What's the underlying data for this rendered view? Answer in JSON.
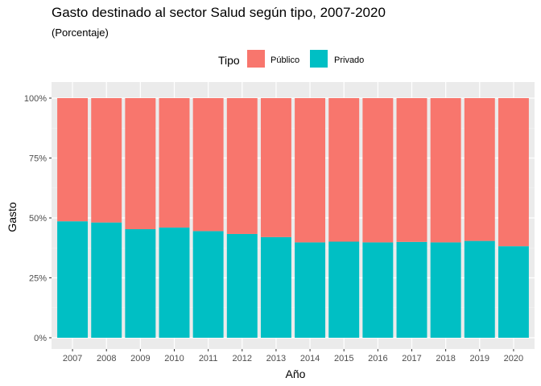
{
  "chart_data": {
    "type": "bar",
    "stacked": true,
    "title": "Gasto destinado al sector Salud según tipo, 2007-2020",
    "subtitle": "(Porcentaje)",
    "xlabel": "Año",
    "ylabel": "Gasto",
    "legend_title": "Tipo",
    "legend_position": "top",
    "grid": true,
    "ylim": [
      0,
      100
    ],
    "y_ticks": [
      0,
      25,
      50,
      75,
      100
    ],
    "y_tick_labels": [
      "0%",
      "25%",
      "50%",
      "75%",
      "100%"
    ],
    "categories": [
      "2007",
      "2008",
      "2009",
      "2010",
      "2011",
      "2012",
      "2013",
      "2014",
      "2015",
      "2016",
      "2017",
      "2018",
      "2019",
      "2020"
    ],
    "series": [
      {
        "name": "Público",
        "color": "#F8766D",
        "values": [
          51.4,
          51.9,
          54.7,
          54.0,
          55.5,
          56.7,
          58.0,
          60.2,
          59.9,
          60.2,
          60.0,
          60.2,
          59.6,
          61.8
        ]
      },
      {
        "name": "Privado",
        "color": "#00BFC4",
        "values": [
          48.6,
          48.1,
          45.3,
          46.0,
          44.5,
          43.3,
          42.0,
          39.8,
          40.1,
          39.8,
          40.0,
          39.8,
          40.4,
          38.2
        ]
      }
    ]
  }
}
